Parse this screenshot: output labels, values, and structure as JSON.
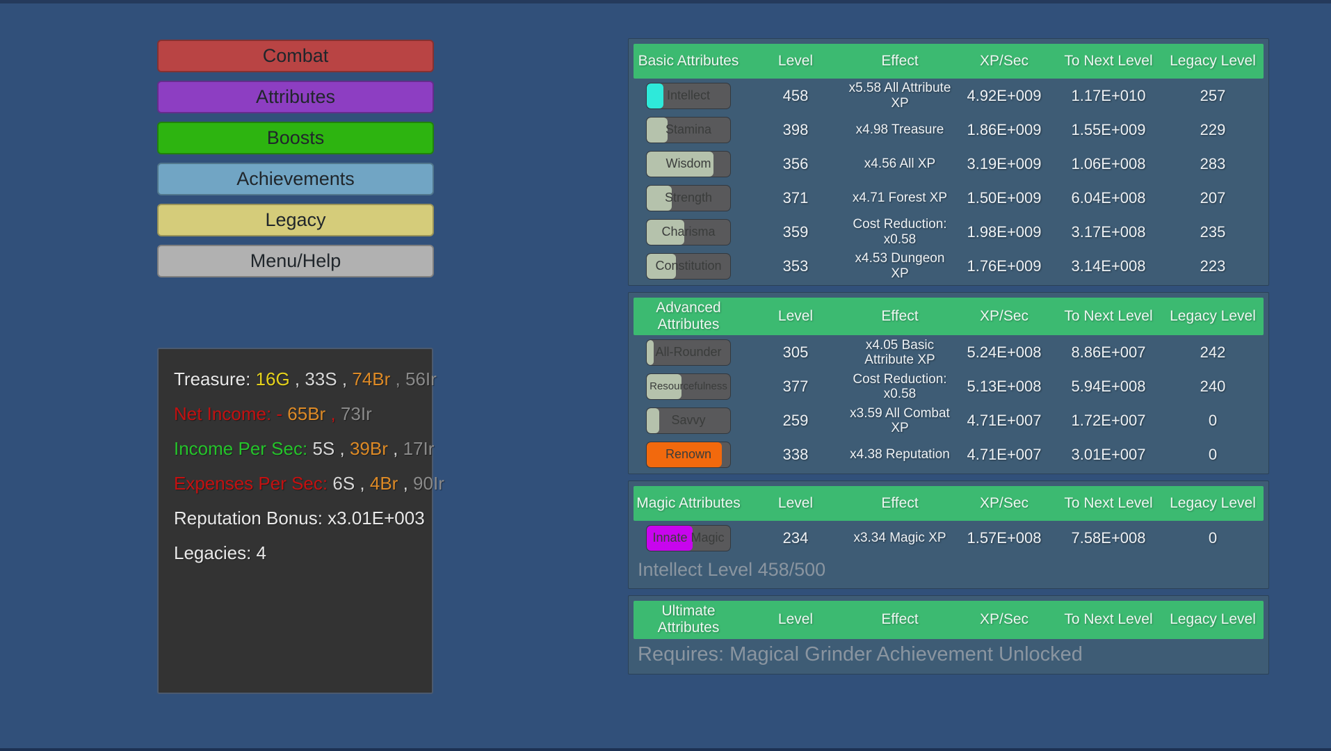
{
  "colors": {
    "white": "#e9e9e9",
    "gold": "#e5d21c",
    "silver": "#d8d8d8",
    "bronze": "#dd8a26",
    "iron": "#8a8a8a",
    "red": "#c31111",
    "green": "#25c32b",
    "header_green": "#3cba71",
    "panel_blue": "#3e5c75",
    "page_background": "#31507a",
    "cyan_fill": "#2ee9da",
    "sage_fill": "#b5c2ac",
    "orange_fill": "#f2690d",
    "magenta_fill": "#c805ee"
  },
  "menu": {
    "buttons": [
      {
        "label": "Combat",
        "bg": "#b94444"
      },
      {
        "label": "Attributes",
        "bg": "#8d3ec2"
      },
      {
        "label": "Boosts",
        "bg": "#2db410"
      },
      {
        "label": "Achievements",
        "bg": "#71a5c4"
      },
      {
        "label": "Legacy",
        "bg": "#d5cc7a"
      },
      {
        "label": "Menu/Help",
        "bg": "#b1b1b1"
      }
    ]
  },
  "stats": {
    "lines": [
      {
        "parts": [
          {
            "text": "Treasure:",
            "color": "white"
          },
          {
            "text": "16G",
            "color": "gold"
          },
          {
            "text": ",",
            "color": "silver"
          },
          {
            "text": "33S",
            "color": "silver"
          },
          {
            "text": ",",
            "color": "silver"
          },
          {
            "text": "74Br",
            "color": "bronze"
          },
          {
            "text": ",",
            "color": "iron"
          },
          {
            "text": "56Ir",
            "color": "iron"
          }
        ]
      },
      {
        "parts": [
          {
            "text": "Net Income: -",
            "color": "red"
          },
          {
            "text": "65Br",
            "color": "bronze"
          },
          {
            "text": ",",
            "color": "red"
          },
          {
            "text": "73Ir",
            "color": "iron"
          }
        ]
      },
      {
        "parts": [
          {
            "text": "Income Per Sec:",
            "color": "green"
          },
          {
            "text": "5S",
            "color": "silver"
          },
          {
            "text": ",",
            "color": "silver"
          },
          {
            "text": "39Br",
            "color": "bronze"
          },
          {
            "text": ",",
            "color": "silver"
          },
          {
            "text": "17Ir",
            "color": "iron"
          }
        ]
      },
      {
        "parts": [
          {
            "text": "Expenses Per Sec:",
            "color": "red"
          },
          {
            "text": "6S",
            "color": "silver"
          },
          {
            "text": ",",
            "color": "silver"
          },
          {
            "text": "4Br",
            "color": "bronze"
          },
          {
            "text": ",",
            "color": "silver"
          },
          {
            "text": "90Ir",
            "color": "iron"
          }
        ]
      },
      {
        "parts": [
          {
            "text": "Reputation Bonus: x3.01E+003",
            "color": "white"
          }
        ]
      },
      {
        "parts": [
          {
            "text": "Legacies: 4",
            "color": "white"
          }
        ]
      }
    ]
  },
  "tables": [
    {
      "title": "Basic Attributes",
      "columns": [
        "Level",
        "Effect",
        "XP/Sec",
        "To Next Level",
        "Legacy Level"
      ],
      "rows": [
        {
          "name": "Intellect",
          "fill": {
            "pct": 20,
            "color": "#2ee9da"
          },
          "level": "458",
          "effect": "x5.58 All Attribute XP",
          "xp": "4.92E+009",
          "next": "1.17E+010",
          "legacy": "257"
        },
        {
          "name": "Stamina",
          "fill": {
            "pct": 25,
            "color": "#b5c2ac"
          },
          "level": "398",
          "effect": "x4.98 Treasure",
          "xp": "1.86E+009",
          "next": "1.55E+009",
          "legacy": "229"
        },
        {
          "name": "Wisdom",
          "fill": {
            "pct": 80,
            "color": "#b5c2ac"
          },
          "level": "356",
          "effect": "x4.56 All XP",
          "xp": "3.19E+009",
          "next": "1.06E+008",
          "legacy": "283"
        },
        {
          "name": "Strength",
          "fill": {
            "pct": 30,
            "color": "#b5c2ac"
          },
          "level": "371",
          "effect": "x4.71 Forest XP",
          "xp": "1.50E+009",
          "next": "6.04E+008",
          "legacy": "207"
        },
        {
          "name": "Charisma",
          "fill": {
            "pct": 45,
            "color": "#b5c2ac"
          },
          "level": "359",
          "effect": "Cost Reduction: x0.58",
          "xp": "1.98E+009",
          "next": "3.17E+008",
          "legacy": "235"
        },
        {
          "name": "Constitution",
          "fill": {
            "pct": 35,
            "color": "#b5c2ac"
          },
          "level": "353",
          "effect": "x4.53 Dungeon XP",
          "xp": "1.76E+009",
          "next": "3.14E+008",
          "legacy": "223"
        }
      ]
    },
    {
      "title": "Advanced Attributes",
      "columns": [
        "Level",
        "Effect",
        "XP/Sec",
        "To Next Level",
        "Legacy Level"
      ],
      "rows": [
        {
          "name": "All-Rounder",
          "fill": {
            "pct": 8,
            "color": "#b5c2ac"
          },
          "level": "305",
          "effect": "x4.05 Basic Attribute XP",
          "xp": "5.24E+008",
          "next": "8.86E+007",
          "legacy": "242"
        },
        {
          "name": "Resourcefulness",
          "fill": {
            "pct": 42,
            "color": "#b5c2ac"
          },
          "level": "377",
          "effect": "Cost Reduction: x0.58",
          "xp": "5.13E+008",
          "next": "5.94E+008",
          "legacy": "240"
        },
        {
          "name": "Savvy",
          "fill": {
            "pct": 15,
            "color": "#b5c2ac"
          },
          "level": "259",
          "effect": "x3.59 All Combat XP",
          "xp": "4.71E+007",
          "next": "1.72E+007",
          "legacy": "0"
        },
        {
          "name": "Renown",
          "fill": {
            "pct": 90,
            "color": "#f2690d"
          },
          "level": "338",
          "effect": "x4.38 Reputation",
          "xp": "4.71E+007",
          "next": "3.01E+007",
          "legacy": "0"
        }
      ]
    },
    {
      "title": "Magic Attributes",
      "columns": [
        "Level",
        "Effect",
        "XP/Sec",
        "To Next Level",
        "Legacy Level"
      ],
      "rows": [
        {
          "name": "Innate Magic",
          "fill": {
            "pct": 55,
            "color": "#c805ee"
          },
          "level": "234",
          "effect": "x3.34 Magic XP",
          "xp": "1.57E+008",
          "next": "7.58E+008",
          "legacy": "0"
        }
      ],
      "footnote": "Intellect Level 458/500"
    },
    {
      "title": "Ultimate Attributes",
      "columns": [
        "Level",
        "Effect",
        "XP/Sec",
        "To Next Level",
        "Legacy Level"
      ],
      "rows": [],
      "footnote": "Requires: Magical Grinder Achievement Unlocked"
    }
  ]
}
